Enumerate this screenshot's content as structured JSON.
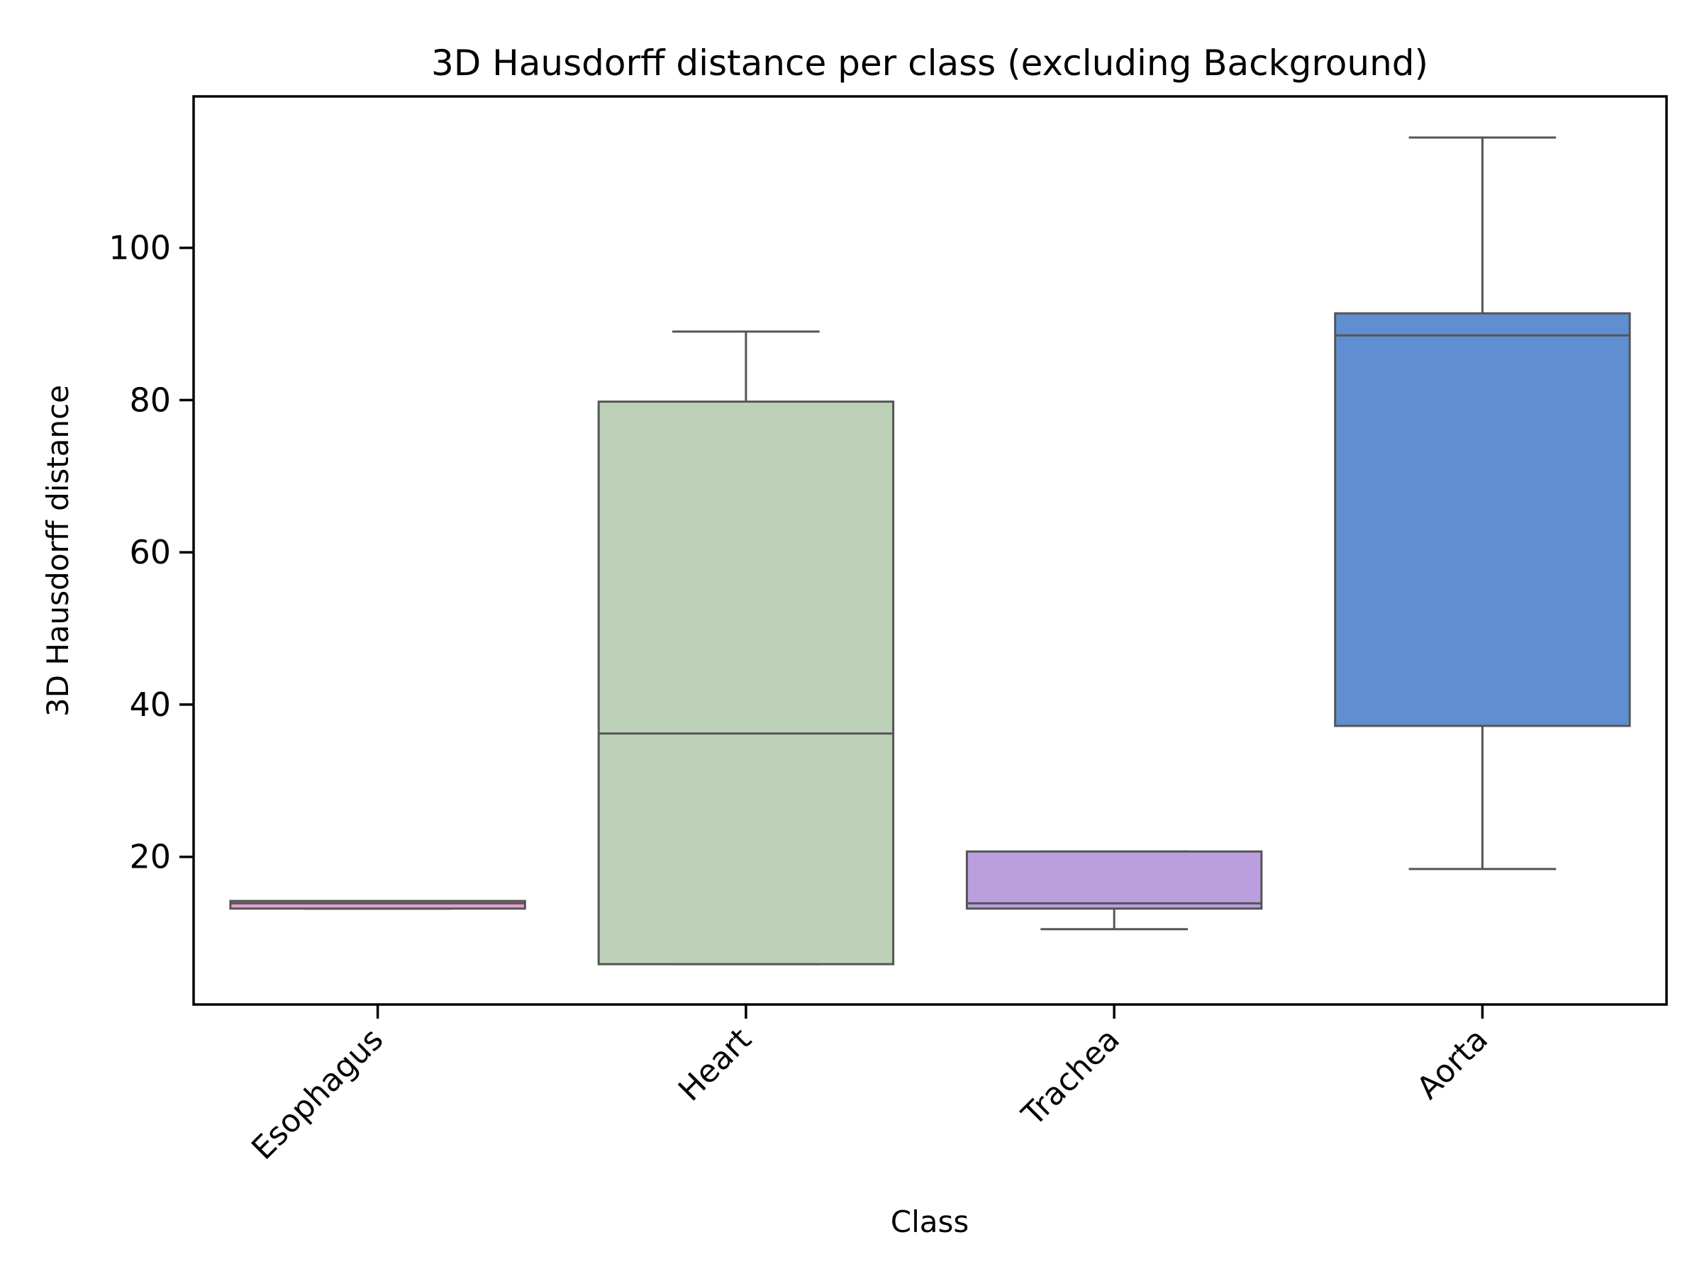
{
  "chart_data": {
    "type": "box",
    "title": "3D Hausdorff distance per class (excluding Background)",
    "xlabel": "Class",
    "ylabel": "3D Hausdorff distance",
    "ylim": [
      0.6,
      119.9
    ],
    "yticks": [
      20,
      40,
      60,
      80,
      100
    ],
    "grid": false,
    "categories": [
      "Esophagus",
      "Heart",
      "Trachea",
      "Aorta"
    ],
    "boxes": [
      {
        "name": "Esophagus",
        "whisker_low": 13.2,
        "q1": 13.2,
        "median": 13.9,
        "q3": 14.2,
        "whisker_high": 14.2,
        "color": "#e2a0cf"
      },
      {
        "name": "Heart",
        "whisker_low": 5.9,
        "q1": 5.9,
        "median": 36.2,
        "q3": 79.8,
        "whisker_high": 89.0,
        "color": "#bdd1b8"
      },
      {
        "name": "Trachea",
        "whisker_low": 10.5,
        "q1": 13.2,
        "median": 13.9,
        "q3": 20.7,
        "whisker_high": 20.7,
        "color": "#bb9ede"
      },
      {
        "name": "Aorta",
        "whisker_low": 18.4,
        "q1": 37.2,
        "median": 88.5,
        "q3": 91.4,
        "whisker_high": 114.5,
        "color": "#5f8fd0"
      }
    ]
  }
}
